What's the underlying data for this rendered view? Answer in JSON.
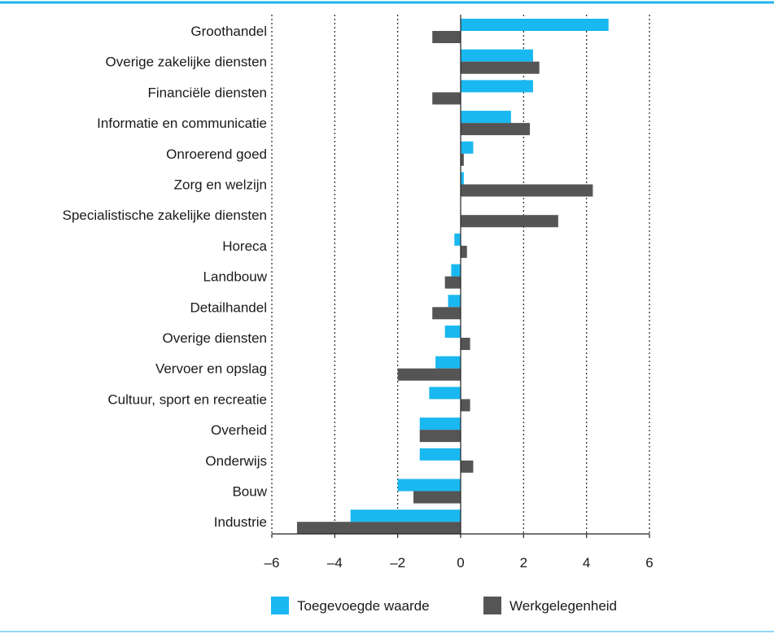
{
  "colors": {
    "accent_rule": "#1fb3e8",
    "series_1": "#1ab8f0",
    "series_2": "#555555",
    "grid": "#222222",
    "axis": "#222222"
  },
  "chart_data": {
    "type": "bar",
    "orientation": "horizontal",
    "categories": [
      "Groothandel",
      "Overige zakelijke diensten",
      "Financiële diensten",
      "Informatie en communicatie",
      "Onroerend goed",
      "Zorg en welzijn",
      "Specialistische zakelijke diensten",
      "Horeca",
      "Landbouw",
      "Detailhandel",
      "Overige diensten",
      "Vervoer en opslag",
      "Cultuur, sport en recreatie",
      "Overheid",
      "Onderwijs",
      "Bouw",
      "Industrie"
    ],
    "series": [
      {
        "name": "Toegevoegde waarde",
        "color": "#1ab8f0",
        "values": [
          4.7,
          2.3,
          2.3,
          1.6,
          0.4,
          0.1,
          0.0,
          -0.2,
          -0.3,
          -0.4,
          -0.5,
          -0.8,
          -1.0,
          -1.3,
          -1.3,
          -2.0,
          -3.5
        ]
      },
      {
        "name": "Werkgelegenheid",
        "color": "#555555",
        "values": [
          -0.9,
          2.5,
          -0.9,
          2.2,
          0.1,
          4.2,
          3.1,
          0.2,
          -0.5,
          -0.9,
          0.3,
          -2.0,
          0.3,
          -1.3,
          0.4,
          -1.5,
          -5.2
        ]
      }
    ],
    "xlim": [
      -6,
      6
    ],
    "xticks": [
      -6,
      -4,
      -2,
      0,
      2,
      4,
      6
    ],
    "xtick_labels": [
      "–6",
      "–4",
      "–2",
      "0",
      "2",
      "4",
      "6"
    ],
    "grid": "vertical dotted at each tick",
    "legend": "bottom-center",
    "title": "",
    "xlabel": "",
    "ylabel": ""
  }
}
